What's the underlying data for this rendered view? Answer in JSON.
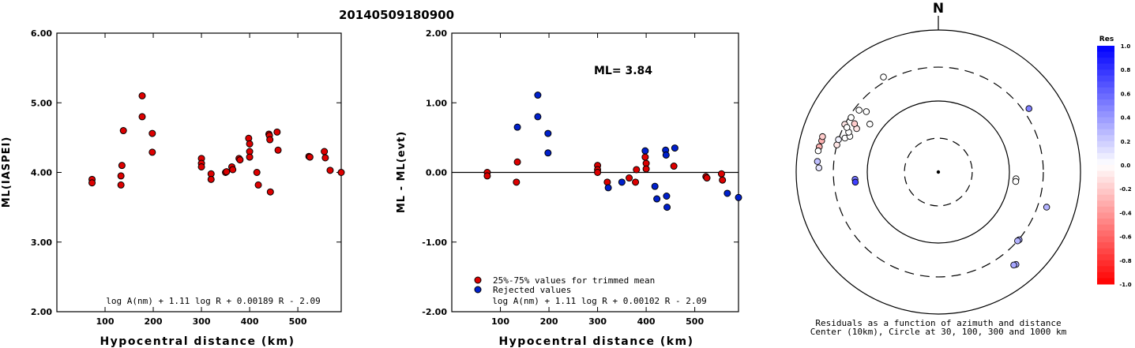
{
  "page_title": "20140509180900",
  "chart_data": [
    {
      "type": "scatter",
      "ylabel": "ML(IASPEI)",
      "xlabel": "Hypocentral distance (km)",
      "xlim": [
        0,
        590
      ],
      "ylim": [
        2.0,
        6.0
      ],
      "xticks": [
        100,
        200,
        300,
        400,
        500
      ],
      "yticks": [
        "2.00",
        "3.00",
        "4.00",
        "5.00",
        "6.00"
      ],
      "formula": "log A(nm) + 1.11 log R + 0.00189 R - 2.09",
      "point_color": "#dd0000",
      "points": [
        [
          73,
          3.9
        ],
        [
          73,
          3.85
        ],
        [
          133,
          3.82
        ],
        [
          133,
          3.95
        ],
        [
          135,
          4.1
        ],
        [
          138,
          4.6
        ],
        [
          177,
          5.1
        ],
        [
          177,
          4.8
        ],
        [
          198,
          4.56
        ],
        [
          198,
          4.29
        ],
        [
          300,
          4.2
        ],
        [
          300,
          4.13
        ],
        [
          300,
          4.08
        ],
        [
          320,
          3.98
        ],
        [
          320,
          3.9
        ],
        [
          350,
          4.0
        ],
        [
          352,
          4.01
        ],
        [
          363,
          4.08
        ],
        [
          365,
          4.04
        ],
        [
          378,
          4.2
        ],
        [
          380,
          4.18
        ],
        [
          398,
          4.49
        ],
        [
          400,
          4.41
        ],
        [
          400,
          4.3
        ],
        [
          400,
          4.22
        ],
        [
          415,
          4.0
        ],
        [
          418,
          3.82
        ],
        [
          440,
          4.55
        ],
        [
          441,
          4.53
        ],
        [
          442,
          4.47
        ],
        [
          443,
          3.72
        ],
        [
          457,
          4.58
        ],
        [
          459,
          4.32
        ],
        [
          523,
          4.23
        ],
        [
          525,
          4.22
        ],
        [
          555,
          4.3
        ],
        [
          557,
          4.21
        ],
        [
          567,
          4.03
        ],
        [
          590,
          4.0
        ]
      ]
    },
    {
      "type": "scatter",
      "ylabel": "ML - ML(evt)",
      "xlabel": "Hypocentral distance (km)",
      "xlim": [
        0,
        590
      ],
      "ylim": [
        -2.0,
        2.0
      ],
      "xticks": [
        100,
        200,
        300,
        400,
        500
      ],
      "yticks": [
        "-2.00",
        "-1.00",
        "0.00",
        "1.00",
        "2.00"
      ],
      "annotation": "ML= 3.84",
      "formula": "log A(nm) + 1.11 log R + 0.00102 R - 2.09",
      "legend": [
        "25%-75% values for trimmed mean",
        "Rejected values"
      ],
      "colors": {
        "trimmed": "#dd0000",
        "rejected": "#0020cc"
      },
      "trimmed": [
        [
          73,
          0.0
        ],
        [
          73,
          -0.05
        ],
        [
          133,
          -0.14
        ],
        [
          135,
          0.15
        ],
        [
          300,
          0.1
        ],
        [
          300,
          0.04
        ],
        [
          300,
          0.0
        ],
        [
          320,
          -0.14
        ],
        [
          365,
          -0.08
        ],
        [
          378,
          -0.14
        ],
        [
          380,
          0.04
        ],
        [
          398,
          0.22
        ],
        [
          400,
          0.13
        ],
        [
          400,
          0.05
        ],
        [
          457,
          0.09
        ],
        [
          523,
          -0.06
        ],
        [
          525,
          -0.08
        ],
        [
          555,
          -0.02
        ],
        [
          557,
          -0.11
        ]
      ],
      "rejected": [
        [
          135,
          0.65
        ],
        [
          177,
          1.11
        ],
        [
          177,
          0.8
        ],
        [
          198,
          0.56
        ],
        [
          198,
          0.28
        ],
        [
          322,
          -0.22
        ],
        [
          350,
          -0.14
        ],
        [
          398,
          0.31
        ],
        [
          418,
          -0.2
        ],
        [
          422,
          -0.38
        ],
        [
          440,
          0.32
        ],
        [
          441,
          0.25
        ],
        [
          442,
          -0.34
        ],
        [
          443,
          -0.5
        ],
        [
          459,
          0.35
        ],
        [
          567,
          -0.3
        ],
        [
          590,
          -0.36
        ]
      ]
    },
    {
      "type": "polar_scatter",
      "north_label": "N",
      "caption_line1": "Residuals as a function of azimuth and distance",
      "caption_line2": "Center (10km), Circle at 30, 100, 300 and 1000 km",
      "colorbar_title": "Res",
      "colorbar_ticks": [
        "1.0",
        "0.8",
        "0.6",
        "0.4",
        "0.2",
        "0.0",
        "-0.2",
        "-0.4",
        "-0.6",
        "-0.8",
        "-1.0"
      ],
      "points": [
        [
          -63,
          300,
          -0.1
        ],
        [
          -30,
          350,
          0.0
        ],
        [
          -75,
          300,
          -0.1
        ],
        [
          -72,
          300,
          0.05
        ],
        [
          -70,
          250,
          0.0
        ],
        [
          -68,
          220,
          0.0
        ],
        [
          -66,
          240,
          0.0
        ],
        [
          -64,
          270,
          0.0
        ],
        [
          -62,
          200,
          -0.1
        ],
        [
          -60,
          230,
          -0.2
        ],
        [
          -58,
          280,
          0.0
        ],
        [
          -55,
          150,
          0.0
        ],
        [
          -52,
          260,
          0.0
        ],
        [
          -50,
          210,
          0.0
        ],
        [
          -75,
          500,
          -0.3
        ],
        [
          -73,
          505,
          -0.2
        ],
        [
          -78,
          515,
          -0.3
        ],
        [
          -80,
          520,
          0.0
        ],
        [
          -85,
          510,
          0.25
        ],
        [
          -88,
          480,
          0.1
        ],
        [
          -95,
          150,
          0.55
        ],
        [
          -97,
          150,
          0.75
        ],
        [
          55,
          360,
          0.5
        ],
        [
          95,
          125,
          0.0
        ],
        [
          97,
          125,
          0.0
        ],
        [
          108,
          400,
          0.3
        ],
        [
          130,
          305,
          0.35
        ],
        [
          131,
          300,
          0.3
        ],
        [
          140,
          500,
          0.35
        ],
        [
          141,
          485,
          0.35
        ]
      ]
    }
  ]
}
